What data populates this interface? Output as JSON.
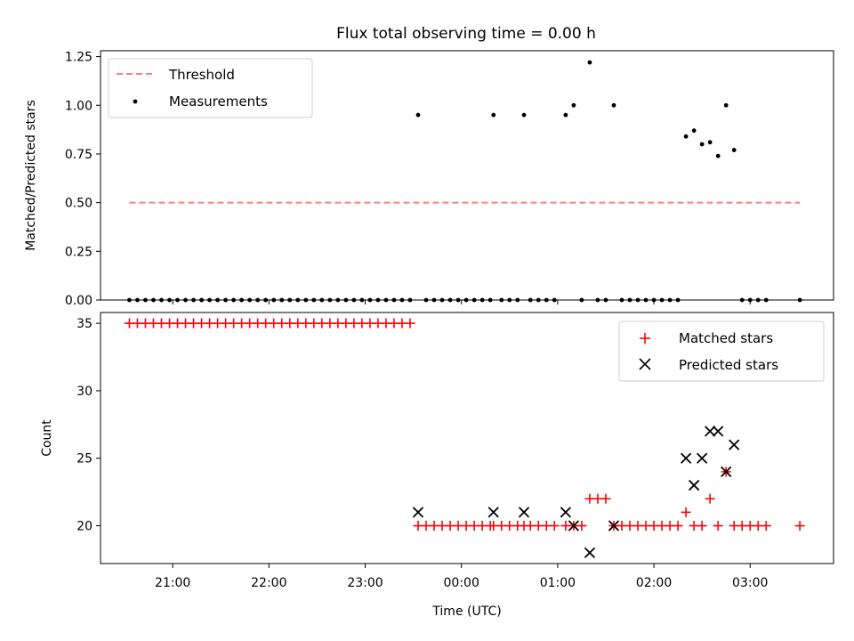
{
  "title": "Flux total observing time = 0.00 h",
  "chart_data": [
    {
      "type": "scatter",
      "ylabel": "Matched/Predicted stars",
      "ylim": [
        0,
        1.28
      ],
      "yticks": [
        0.0,
        0.25,
        0.5,
        0.75,
        1.0,
        1.25
      ],
      "ytick_labels": [
        "0.00",
        "0.25",
        "0.50",
        "0.75",
        "1.00",
        "1.25"
      ],
      "grid": false,
      "legend": "top-left",
      "threshold": {
        "name": "Threshold",
        "value": 0.5,
        "x_start": "20:33",
        "x_end": "03:31",
        "color": "#ff7f7f"
      },
      "series": [
        {
          "name": "Measurements",
          "color": "#000000",
          "points": [
            [
              "20:33",
              0
            ],
            [
              "20:38",
              0
            ],
            [
              "20:43",
              0
            ],
            [
              "20:48",
              0
            ],
            [
              "20:53",
              0
            ],
            [
              "20:58",
              0
            ],
            [
              "21:03",
              0
            ],
            [
              "21:08",
              0
            ],
            [
              "21:13",
              0
            ],
            [
              "21:18",
              0
            ],
            [
              "21:23",
              0
            ],
            [
              "21:28",
              0
            ],
            [
              "21:33",
              0
            ],
            [
              "21:38",
              0
            ],
            [
              "21:43",
              0
            ],
            [
              "21:48",
              0
            ],
            [
              "21:53",
              0
            ],
            [
              "21:58",
              0
            ],
            [
              "22:03",
              0
            ],
            [
              "22:08",
              0
            ],
            [
              "22:13",
              0
            ],
            [
              "22:18",
              0
            ],
            [
              "22:23",
              0
            ],
            [
              "22:28",
              0
            ],
            [
              "22:33",
              0
            ],
            [
              "22:38",
              0
            ],
            [
              "22:43",
              0
            ],
            [
              "22:48",
              0
            ],
            [
              "22:53",
              0
            ],
            [
              "22:58",
              0
            ],
            [
              "23:03",
              0
            ],
            [
              "23:08",
              0
            ],
            [
              "23:13",
              0
            ],
            [
              "23:18",
              0
            ],
            [
              "23:23",
              0
            ],
            [
              "23:28",
              0
            ],
            [
              "23:33",
              0.95
            ],
            [
              "23:38",
              0
            ],
            [
              "23:43",
              0
            ],
            [
              "23:48",
              0
            ],
            [
              "23:53",
              0
            ],
            [
              "23:58",
              0
            ],
            [
              "00:03",
              0
            ],
            [
              "00:08",
              0
            ],
            [
              "00:13",
              0
            ],
            [
              "00:18",
              0
            ],
            [
              "00:20",
              0.95
            ],
            [
              "00:25",
              0
            ],
            [
              "00:30",
              0
            ],
            [
              "00:35",
              0
            ],
            [
              "00:39",
              0.95
            ],
            [
              "00:43",
              0
            ],
            [
              "00:48",
              0
            ],
            [
              "00:53",
              0
            ],
            [
              "00:58",
              0
            ],
            [
              "01:05",
              0.95
            ],
            [
              "01:10",
              1.0
            ],
            [
              "01:15",
              0
            ],
            [
              "01:20",
              1.22
            ],
            [
              "01:25",
              0
            ],
            [
              "01:30",
              0
            ],
            [
              "01:35",
              1.0
            ],
            [
              "01:40",
              0
            ],
            [
              "01:45",
              0
            ],
            [
              "01:50",
              0
            ],
            [
              "01:55",
              0
            ],
            [
              "02:00",
              0
            ],
            [
              "02:05",
              0
            ],
            [
              "02:10",
              0
            ],
            [
              "02:15",
              0
            ],
            [
              "02:20",
              0.84
            ],
            [
              "02:25",
              0.87
            ],
            [
              "02:30",
              0.8
            ],
            [
              "02:35",
              0.81
            ],
            [
              "02:40",
              0.74
            ],
            [
              "02:45",
              1.0
            ],
            [
              "02:50",
              0.77
            ],
            [
              "02:55",
              0
            ],
            [
              "03:00",
              0
            ],
            [
              "03:05",
              0
            ],
            [
              "03:10",
              0
            ],
            [
              "03:31",
              0
            ]
          ]
        }
      ]
    },
    {
      "type": "scatter",
      "xlabel": "Time (UTC)",
      "ylabel": "Count",
      "ylim": [
        17.2,
        35.8
      ],
      "yticks": [
        20,
        25,
        30,
        35
      ],
      "ytick_labels": [
        "20",
        "25",
        "30",
        "35"
      ],
      "xlim": [
        "20:15",
        "03:52"
      ],
      "xticks": [
        "21:00",
        "22:00",
        "23:00",
        "00:00",
        "01:00",
        "02:00",
        "03:00"
      ],
      "grid": false,
      "legend": "top-right",
      "series": [
        {
          "name": "Matched stars",
          "marker": "plus",
          "color": "#ff0000",
          "points": [
            [
              "20:33",
              35
            ],
            [
              "20:38",
              35
            ],
            [
              "20:43",
              35
            ],
            [
              "20:48",
              35
            ],
            [
              "20:53",
              35
            ],
            [
              "20:58",
              35
            ],
            [
              "21:03",
              35
            ],
            [
              "21:08",
              35
            ],
            [
              "21:13",
              35
            ],
            [
              "21:18",
              35
            ],
            [
              "21:23",
              35
            ],
            [
              "21:28",
              35
            ],
            [
              "21:33",
              35
            ],
            [
              "21:38",
              35
            ],
            [
              "21:43",
              35
            ],
            [
              "21:48",
              35
            ],
            [
              "21:53",
              35
            ],
            [
              "21:58",
              35
            ],
            [
              "22:03",
              35
            ],
            [
              "22:08",
              35
            ],
            [
              "22:13",
              35
            ],
            [
              "22:18",
              35
            ],
            [
              "22:23",
              35
            ],
            [
              "22:28",
              35
            ],
            [
              "22:33",
              35
            ],
            [
              "22:38",
              35
            ],
            [
              "22:43",
              35
            ],
            [
              "22:48",
              35
            ],
            [
              "22:53",
              35
            ],
            [
              "22:58",
              35
            ],
            [
              "23:03",
              35
            ],
            [
              "23:08",
              35
            ],
            [
              "23:13",
              35
            ],
            [
              "23:18",
              35
            ],
            [
              "23:23",
              35
            ],
            [
              "23:28",
              35
            ],
            [
              "23:33",
              20
            ],
            [
              "23:38",
              20
            ],
            [
              "23:43",
              20
            ],
            [
              "23:48",
              20
            ],
            [
              "23:53",
              20
            ],
            [
              "23:58",
              20
            ],
            [
              "00:03",
              20
            ],
            [
              "00:08",
              20
            ],
            [
              "00:13",
              20
            ],
            [
              "00:18",
              20
            ],
            [
              "00:20",
              20
            ],
            [
              "00:25",
              20
            ],
            [
              "00:30",
              20
            ],
            [
              "00:35",
              20
            ],
            [
              "00:39",
              20
            ],
            [
              "00:43",
              20
            ],
            [
              "00:48",
              20
            ],
            [
              "00:53",
              20
            ],
            [
              "00:58",
              20
            ],
            [
              "01:05",
              20
            ],
            [
              "01:10",
              20
            ],
            [
              "01:15",
              20
            ],
            [
              "01:20",
              22
            ],
            [
              "01:25",
              22
            ],
            [
              "01:30",
              22
            ],
            [
              "01:35",
              20
            ],
            [
              "01:40",
              20
            ],
            [
              "01:45",
              20
            ],
            [
              "01:50",
              20
            ],
            [
              "01:55",
              20
            ],
            [
              "02:00",
              20
            ],
            [
              "02:05",
              20
            ],
            [
              "02:10",
              20
            ],
            [
              "02:15",
              20
            ],
            [
              "02:20",
              21
            ],
            [
              "02:25",
              20
            ],
            [
              "02:30",
              20
            ],
            [
              "02:35",
              22
            ],
            [
              "02:40",
              20
            ],
            [
              "02:45",
              24
            ],
            [
              "02:50",
              20
            ],
            [
              "02:55",
              20
            ],
            [
              "03:00",
              20
            ],
            [
              "03:05",
              20
            ],
            [
              "03:10",
              20
            ],
            [
              "03:31",
              20
            ]
          ]
        },
        {
          "name": "Predicted stars",
          "marker": "x",
          "color": "#000000",
          "points": [
            [
              "23:33",
              21
            ],
            [
              "00:20",
              21
            ],
            [
              "00:39",
              21
            ],
            [
              "01:05",
              21
            ],
            [
              "01:10",
              20
            ],
            [
              "01:20",
              18
            ],
            [
              "01:35",
              20
            ],
            [
              "02:20",
              25
            ],
            [
              "02:25",
              23
            ],
            [
              "02:30",
              25
            ],
            [
              "02:35",
              27
            ],
            [
              "02:40",
              27
            ],
            [
              "02:45",
              24
            ],
            [
              "02:50",
              26
            ]
          ]
        }
      ]
    }
  ]
}
